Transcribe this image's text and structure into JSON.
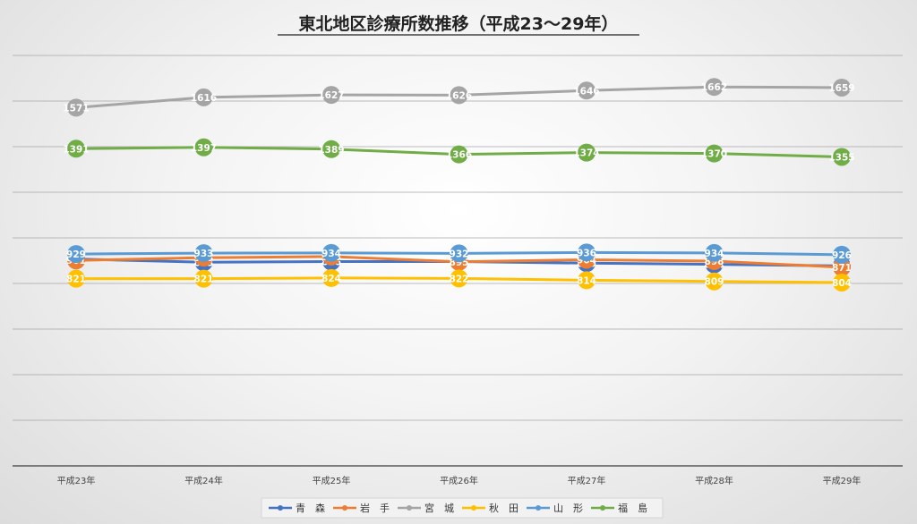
{
  "chart_data": {
    "type": "line",
    "title": "東北地区診療所数推移（平成23～29年）",
    "categories": [
      "平成23年",
      "平成24年",
      "平成25年",
      "平成26年",
      "平成27年",
      "平成28年",
      "平成29年"
    ],
    "ylim": [
      0,
      1800
    ],
    "grid": true,
    "legend_position": "bottom",
    "series": [
      {
        "name": "青　森",
        "color": "#4472c4",
        "values": [
          907,
          893,
          896,
          896,
          889,
          884,
          877
        ]
      },
      {
        "name": "岩　手",
        "color": "#ed7d31",
        "values": [
          901,
          913,
          918,
          895,
          904,
          898,
          871
        ]
      },
      {
        "name": "宮　城",
        "color": "#a5a5a5",
        "values": [
          1571,
          1616,
          1627,
          1626,
          1646,
          1662,
          1659
        ]
      },
      {
        "name": "秋　田",
        "color": "#ffc000",
        "values": [
          821,
          821,
          824,
          822,
          814,
          809,
          804
        ]
      },
      {
        "name": "山　形",
        "color": "#5b9bd5",
        "values": [
          929,
          933,
          934,
          932,
          936,
          934,
          926
        ]
      },
      {
        "name": "福　島",
        "color": "#70ad47",
        "values": [
          1391,
          1397,
          1389,
          1366,
          1374,
          1370,
          1355
        ]
      }
    ]
  }
}
